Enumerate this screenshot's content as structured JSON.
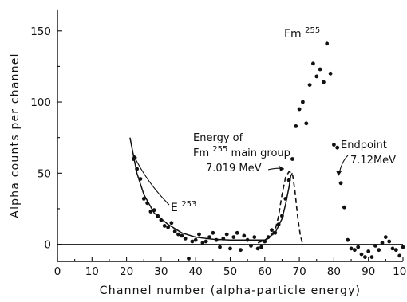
{
  "chart_data": {
    "type": "scatter",
    "xlabel": "Channel number (alpha-particle energy)",
    "ylabel": "Alpha counts per channel",
    "xlim": [
      0,
      100
    ],
    "ylim": [
      -12,
      165
    ],
    "x_ticks": [
      "0",
      "10",
      "20",
      "30",
      "40",
      "50",
      "60",
      "70",
      "80",
      "90",
      "100"
    ],
    "y_ticks": [
      "0",
      "50",
      "100",
      "150"
    ],
    "grid": false,
    "series": [
      {
        "type": "scatter",
        "points": [
          [
            22,
            60
          ],
          [
            23,
            53
          ],
          [
            24,
            46
          ],
          [
            25,
            32
          ],
          [
            26,
            29
          ],
          [
            27,
            23
          ],
          [
            28,
            24
          ],
          [
            29,
            20
          ],
          [
            30,
            17
          ],
          [
            31,
            13
          ],
          [
            32,
            12
          ],
          [
            33,
            15
          ],
          [
            34,
            9
          ],
          [
            35,
            7
          ],
          [
            36,
            6
          ],
          [
            37,
            4
          ],
          [
            38,
            -10
          ],
          [
            39,
            2
          ],
          [
            40,
            3
          ],
          [
            41,
            7
          ],
          [
            42,
            1
          ],
          [
            43,
            2
          ],
          [
            44,
            5
          ],
          [
            45,
            8
          ],
          [
            46,
            3
          ],
          [
            47,
            -2
          ],
          [
            48,
            4
          ],
          [
            49,
            7
          ],
          [
            50,
            -3
          ],
          [
            51,
            5
          ],
          [
            52,
            8
          ],
          [
            53,
            -4
          ],
          [
            54,
            6
          ],
          [
            55,
            3
          ],
          [
            56,
            -1
          ],
          [
            57,
            5
          ],
          [
            58,
            -3
          ],
          [
            59,
            -2
          ],
          [
            60,
            2
          ],
          [
            61,
            5
          ],
          [
            62,
            10
          ],
          [
            63,
            8
          ],
          [
            64,
            14
          ],
          [
            65,
            20
          ],
          [
            66,
            32
          ],
          [
            67,
            45
          ],
          [
            68,
            60
          ],
          [
            69,
            83
          ],
          [
            70,
            95
          ],
          [
            71,
            100
          ],
          [
            72,
            85
          ],
          [
            73,
            112
          ],
          [
            74,
            127
          ],
          [
            75,
            118
          ],
          [
            76,
            123
          ],
          [
            77,
            114
          ],
          [
            78,
            141
          ],
          [
            79,
            120
          ],
          [
            80,
            70
          ],
          [
            81,
            68
          ],
          [
            82,
            43
          ],
          [
            83,
            26
          ],
          [
            84,
            3
          ],
          [
            85,
            -3
          ],
          [
            86,
            -4
          ],
          [
            87,
            -2
          ],
          [
            88,
            -7
          ],
          [
            89,
            -9
          ],
          [
            90,
            -5
          ],
          [
            91,
            -9
          ],
          [
            92,
            -1
          ],
          [
            93,
            -4
          ],
          [
            94,
            1
          ],
          [
            95,
            5
          ],
          [
            96,
            2
          ],
          [
            97,
            -3
          ],
          [
            98,
            -4
          ],
          [
            99,
            -8
          ],
          [
            100,
            -2
          ]
        ]
      },
      {
        "type": "line",
        "points": [
          [
            21,
            75
          ],
          [
            23,
            50
          ],
          [
            25,
            35
          ],
          [
            28,
            22
          ],
          [
            32,
            14
          ],
          [
            36,
            8
          ],
          [
            40,
            5
          ],
          [
            45,
            3.5
          ],
          [
            50,
            3
          ],
          [
            55,
            3
          ],
          [
            60,
            3
          ],
          [
            63,
            8
          ],
          [
            65,
            18
          ],
          [
            66,
            28
          ],
          [
            67,
            40
          ],
          [
            67.5,
            48
          ],
          [
            68,
            50
          ]
        ]
      },
      {
        "type": "dashed",
        "points": [
          [
            58,
            1
          ],
          [
            61,
            4
          ],
          [
            63,
            10
          ],
          [
            64,
            20
          ],
          [
            65,
            35
          ],
          [
            66,
            47
          ],
          [
            67,
            51
          ],
          [
            68,
            50
          ],
          [
            68.7,
            38
          ],
          [
            69.5,
            20
          ],
          [
            70.3,
            6
          ],
          [
            71,
            0
          ]
        ]
      }
    ],
    "annotations": [
      {
        "text": "Fm",
        "sup": "255",
        "at": [
          67,
          155
        ]
      },
      {
        "lines": [
          "Energy of",
          "Fm",
          "main group",
          "7.019 MeV"
        ],
        "sup": "255",
        "arrow_to": [
          65,
          51
        ]
      },
      {
        "text": "E",
        "sup": "253",
        "arrow_to": [
          22.5,
          67
        ]
      },
      {
        "lines": [
          "Endpoint",
          "7.12MeV"
        ],
        "arrow_to": [
          79.5,
          64
        ]
      }
    ]
  }
}
